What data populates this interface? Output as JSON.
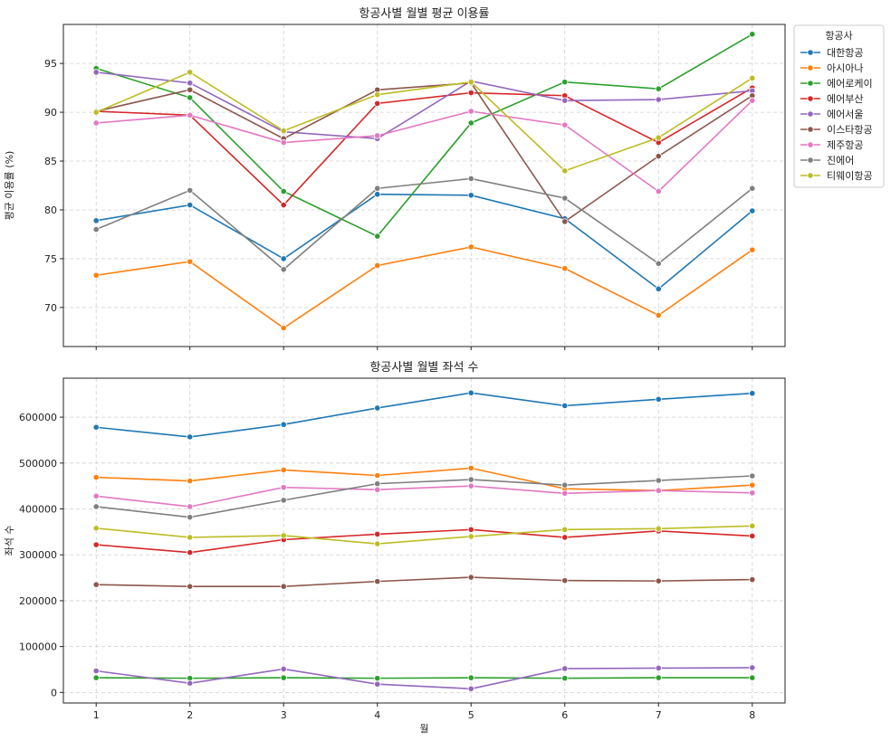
{
  "chart_data": [
    {
      "type": "line",
      "title": "항공사별 월별 평균 이용률",
      "xlabel": "",
      "ylabel": "평균 이용률 (%)",
      "x": [
        1,
        2,
        3,
        4,
        5,
        6,
        7,
        8
      ],
      "ylim": [
        66,
        99
      ],
      "yticks": [
        70,
        75,
        80,
        85,
        90,
        95
      ],
      "grid": true,
      "legend": {
        "title": "항공사",
        "placement": "outside-right"
      },
      "series": [
        {
          "name": "대한항공",
          "color": "#1f77b4",
          "values": [
            78.9,
            80.5,
            75.0,
            81.6,
            81.5,
            79.1,
            71.9,
            79.9
          ]
        },
        {
          "name": "아시아나",
          "color": "#ff7f0e",
          "values": [
            73.3,
            74.7,
            67.9,
            74.3,
            76.2,
            74.0,
            69.2,
            75.9
          ]
        },
        {
          "name": "에어로케이",
          "color": "#2ca02c",
          "values": [
            94.5,
            91.5,
            81.9,
            77.3,
            88.9,
            93.1,
            92.4,
            98.0
          ]
        },
        {
          "name": "에어부산",
          "color": "#d62728",
          "values": [
            90.1,
            89.7,
            80.5,
            90.9,
            92.0,
            91.7,
            86.9,
            92.5
          ]
        },
        {
          "name": "에어서울",
          "color": "#9467bd",
          "values": [
            94.1,
            93.0,
            88.0,
            87.3,
            93.2,
            91.2,
            91.3,
            92.2
          ]
        },
        {
          "name": "이스타항공",
          "color": "#8c564b",
          "values": [
            90.1,
            92.3,
            87.3,
            92.3,
            93.0,
            78.8,
            85.5,
            91.7
          ]
        },
        {
          "name": "제주항공",
          "color": "#e377c2",
          "values": [
            88.9,
            89.7,
            86.9,
            87.6,
            90.1,
            88.7,
            81.9,
            91.2
          ]
        },
        {
          "name": "진에어",
          "color": "#7f7f7f",
          "values": [
            78.0,
            82.0,
            73.9,
            82.2,
            83.2,
            81.2,
            74.5,
            82.2
          ]
        },
        {
          "name": "티웨이항공",
          "color": "#bcbd22",
          "values": [
            90.0,
            94.1,
            88.1,
            91.8,
            93.1,
            84.0,
            87.4,
            93.5
          ]
        }
      ]
    },
    {
      "type": "line",
      "title": "항공사별 월별 좌석 수",
      "xlabel": "월",
      "ylabel": "좌석 수",
      "x": [
        1,
        2,
        3,
        4,
        5,
        6,
        7,
        8
      ],
      "ylim": [
        -23000,
        685000
      ],
      "yticks": [
        0,
        100000,
        200000,
        300000,
        400000,
        500000,
        600000
      ],
      "grid": true,
      "series": [
        {
          "name": "대한항공",
          "color": "#1f77b4",
          "values": [
            578000,
            557000,
            584000,
            620000,
            653000,
            625000,
            639000,
            652000
          ]
        },
        {
          "name": "아시아나",
          "color": "#ff7f0e",
          "values": [
            469000,
            461000,
            485000,
            473000,
            489000,
            444000,
            440000,
            452000
          ]
        },
        {
          "name": "에어로케이",
          "color": "#2ca02c",
          "values": [
            32000,
            31000,
            32000,
            31000,
            32000,
            31000,
            32000,
            32000
          ]
        },
        {
          "name": "에어부산",
          "color": "#d62728",
          "values": [
            322000,
            305000,
            333000,
            345000,
            355000,
            338000,
            352000,
            341000
          ]
        },
        {
          "name": "에어서울",
          "color": "#9467bd",
          "values": [
            47000,
            20000,
            51000,
            18000,
            8000,
            52000,
            53000,
            54000
          ]
        },
        {
          "name": "이스타항공",
          "color": "#8c564b",
          "values": [
            235000,
            231000,
            231000,
            242000,
            251000,
            244000,
            243000,
            246000
          ]
        },
        {
          "name": "제주항공",
          "color": "#e377c2",
          "values": [
            428000,
            405000,
            447000,
            442000,
            450000,
            434000,
            440000,
            435000
          ]
        },
        {
          "name": "진에어",
          "color": "#7f7f7f",
          "values": [
            405000,
            382000,
            419000,
            455000,
            464000,
            452000,
            462000,
            472000
          ]
        },
        {
          "name": "티웨이항공",
          "color": "#bcbd22",
          "values": [
            358000,
            338000,
            342000,
            324000,
            340000,
            355000,
            357000,
            363000
          ]
        }
      ]
    }
  ]
}
